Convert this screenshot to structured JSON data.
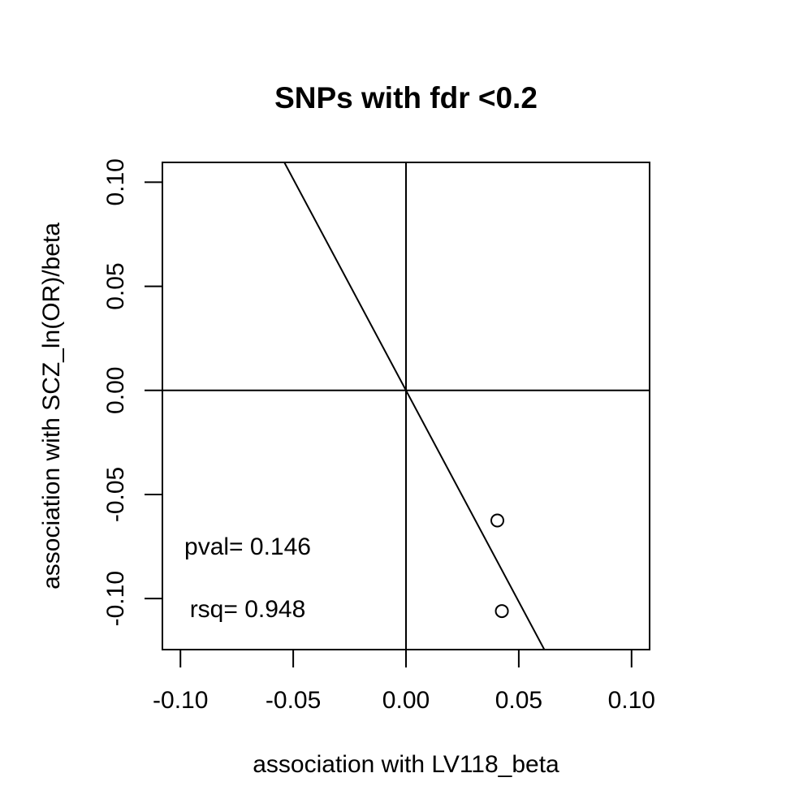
{
  "chart_data": {
    "type": "scatter",
    "title": "SNPs with fdr <0.2",
    "xlabel": "association with LV118_beta",
    "ylabel": "association with SCZ_ln(OR)/beta",
    "xlim": [
      -0.108,
      0.108
    ],
    "ylim": [
      -0.1245,
      0.1095
    ],
    "x_ticks": [
      -0.1,
      -0.05,
      0.0,
      0.05,
      0.1
    ],
    "x_tick_labels": [
      "-0.10",
      "-0.05",
      "0.00",
      "0.05",
      "0.10"
    ],
    "y_ticks": [
      -0.1,
      -0.05,
      0.0,
      0.05,
      0.1
    ],
    "y_tick_labels": [
      "-0.10",
      "-0.05",
      "0.00",
      "0.05",
      "0.10"
    ],
    "points": [
      {
        "x": 0.0405,
        "y": -0.0625
      },
      {
        "x": 0.0425,
        "y": -0.106
      }
    ],
    "reference_lines": {
      "horizontal_at": 0,
      "vertical_at": 0
    },
    "regression_line": {
      "intercept": 0,
      "slope": -2.03
    },
    "annotations": [
      "pval= 0.146",
      "rsq= 0.948"
    ],
    "grid": false,
    "legend": "none"
  }
}
